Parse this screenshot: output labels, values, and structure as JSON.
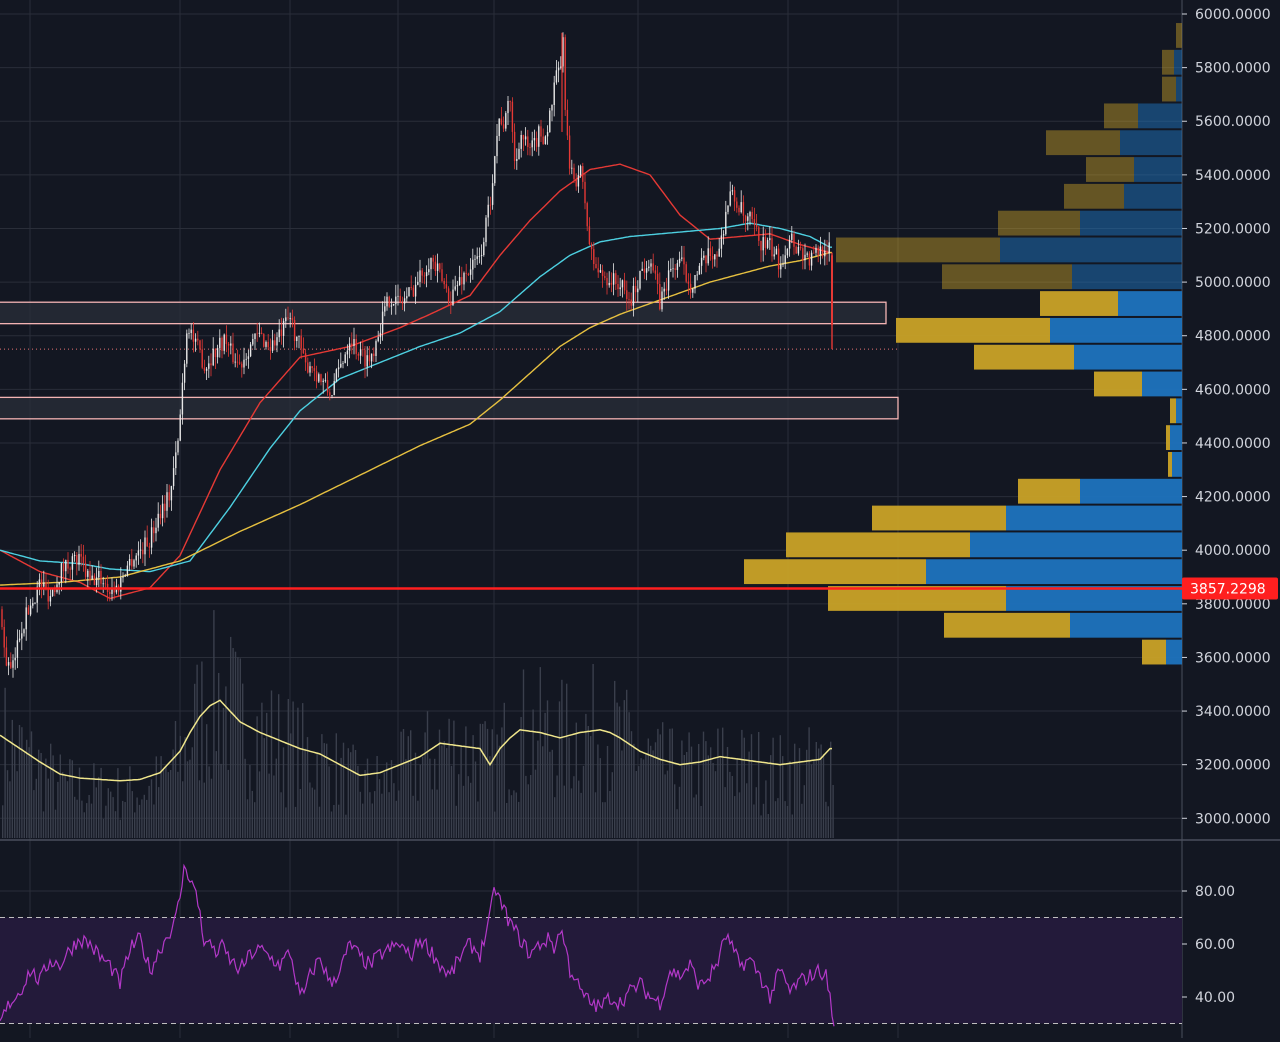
{
  "colors": {
    "background": "#131722",
    "grid": "#2a2e39",
    "axis_text": "#d1d4dc",
    "candle_up": "#e8e8e8",
    "candle_down": "#e53935",
    "ma_red": "#e53935",
    "ma_cyan": "#4dd0e1",
    "ma_yellow": "#e6c040",
    "volume_bar": "#3a3f4c",
    "volume_ma": "#f0e68c",
    "vp_blue": "#1e73be",
    "vp_gold": "#c9a227",
    "zone_border": "#f4b4b4",
    "zone_fill": "#2a2f3a",
    "price_line": "#ff1f1f",
    "rsi_line": "#b338c8",
    "rsi_band": "#231a3a",
    "rsi_band_line": "#bfbfbf"
  },
  "chart_data": [
    {
      "type": "candlestick",
      "ylim": [
        2900,
        6000
      ],
      "y_ticks": [
        "6000.0000",
        "5800.0000",
        "5600.0000",
        "5400.0000",
        "5200.0000",
        "5000.0000",
        "4800.0000",
        "4600.0000",
        "4400.0000",
        "4200.0000",
        "4000.0000",
        "3800.0000",
        "3600.0000",
        "3400.0000",
        "3200.0000",
        "3000.0000"
      ],
      "y_tick_values": [
        6000,
        5800,
        5600,
        5400,
        5200,
        5000,
        4800,
        4600,
        4400,
        4200,
        4000,
        3800,
        3600,
        3400,
        3200,
        3000
      ],
      "current_price": 3857.2298,
      "current_price_label": "3857.2298",
      "dotted_level": 4750,
      "close_series": {
        "keys": [
          0,
          5,
          12,
          20,
          30,
          40,
          50,
          60,
          70,
          80,
          90,
          100,
          110,
          118,
          125,
          130,
          140,
          150,
          160,
          170,
          178,
          183,
          186,
          188,
          190,
          195,
          200,
          205,
          210,
          215,
          220,
          225,
          230,
          240,
          250,
          260,
          270,
          280,
          286,
          290,
          295,
          300,
          305,
          310,
          320,
          330,
          340,
          350,
          360,
          370,
          380,
          390,
          400,
          410,
          420,
          430,
          440,
          450,
          460,
          470,
          480,
          490,
          495,
          500,
          505,
          510,
          515,
          520,
          530,
          540,
          545,
          550,
          555,
          560,
          563,
          566,
          570,
          575,
          580,
          585,
          590,
          595,
          600,
          610,
          620,
          630,
          640,
          650,
          660,
          670,
          680,
          690,
          700,
          710,
          720,
          725,
          730,
          735,
          740,
          745,
          750,
          760,
          770,
          780,
          785,
          790,
          795,
          800,
          810,
          820,
          826,
          830,
          833
        ],
        "values": [
          3780,
          3600,
          3540,
          3700,
          3790,
          3880,
          3830,
          3920,
          3960,
          3960,
          3880,
          3900,
          3850,
          3860,
          3930,
          3960,
          4000,
          4040,
          4150,
          4210,
          4400,
          4650,
          4790,
          4850,
          4830,
          4760,
          4740,
          4680,
          4720,
          4740,
          4770,
          4790,
          4740,
          4690,
          4770,
          4800,
          4760,
          4800,
          4840,
          4870,
          4810,
          4760,
          4680,
          4700,
          4640,
          4580,
          4680,
          4800,
          4730,
          4710,
          4840,
          4950,
          4920,
          4960,
          5020,
          5090,
          5020,
          4940,
          5010,
          5050,
          5090,
          5300,
          5500,
          5620,
          5580,
          5700,
          5420,
          5560,
          5480,
          5560,
          5540,
          5620,
          5740,
          5800,
          5880,
          5600,
          5400,
          5380,
          5420,
          5300,
          5120,
          5060,
          5030,
          5010,
          4990,
          4920,
          5030,
          5100,
          4920,
          5040,
          5080,
          4990,
          5050,
          5100,
          5120,
          5250,
          5330,
          5300,
          5280,
          5220,
          5230,
          5150,
          5130,
          5070,
          5120,
          5180,
          5140,
          5120,
          5080,
          5120,
          5140,
          5110,
          4760
        ]
      },
      "ma_series": [
        {
          "color_key": "ma_red",
          "keys": [
            0,
            40,
            80,
            110,
            150,
            180,
            220,
            260,
            300,
            350,
            400,
            430,
            470,
            500,
            530,
            560,
            590,
            620,
            650,
            680,
            710,
            740,
            770,
            800,
            830
          ],
          "values": [
            4000,
            3920,
            3880,
            3820,
            3860,
            3980,
            4300,
            4550,
            4720,
            4760,
            4830,
            4880,
            4950,
            5100,
            5230,
            5340,
            5420,
            5440,
            5400,
            5250,
            5160,
            5170,
            5180,
            5140,
            5110
          ]
        },
        {
          "color_key": "ma_cyan",
          "keys": [
            0,
            40,
            80,
            110,
            150,
            190,
            230,
            270,
            300,
            340,
            380,
            420,
            460,
            500,
            540,
            570,
            600,
            630,
            660,
            690,
            720,
            750,
            780,
            810,
            830
          ],
          "values": [
            4000,
            3960,
            3950,
            3930,
            3920,
            3960,
            4160,
            4380,
            4520,
            4640,
            4700,
            4760,
            4810,
            4890,
            5020,
            5100,
            5150,
            5170,
            5180,
            5190,
            5200,
            5220,
            5200,
            5170,
            5130
          ]
        },
        {
          "color_key": "ma_yellow",
          "keys": [
            0,
            60,
            120,
            180,
            240,
            300,
            360,
            420,
            470,
            500,
            530,
            560,
            590,
            620,
            650,
            680,
            710,
            740,
            770,
            800,
            830
          ],
          "values": [
            3870,
            3880,
            3900,
            3960,
            4070,
            4170,
            4280,
            4390,
            4470,
            4560,
            4660,
            4760,
            4830,
            4880,
            4920,
            4960,
            5000,
            5030,
            5060,
            5080,
            5110
          ]
        }
      ],
      "zones": [
        {
          "low": 4845,
          "high": 4925,
          "x_end": 886
        },
        {
          "low": 4490,
          "high": 4570,
          "x_end": 898
        }
      ]
    },
    {
      "type": "volume_profile",
      "rows": [
        {
          "low": 5870,
          "high": 5970,
          "blue": 0,
          "gold": 6
        },
        {
          "low": 5770,
          "high": 5870,
          "blue": 8,
          "gold": 12
        },
        {
          "low": 5670,
          "high": 5770,
          "blue": 6,
          "gold": 14
        },
        {
          "low": 5570,
          "high": 5670,
          "blue": 44,
          "gold": 34
        },
        {
          "low": 5470,
          "high": 5570,
          "blue": 62,
          "gold": 74
        },
        {
          "low": 5370,
          "high": 5470,
          "blue": 48,
          "gold": 48
        },
        {
          "low": 5270,
          "high": 5370,
          "blue": 58,
          "gold": 60
        },
        {
          "low": 5170,
          "high": 5270,
          "blue": 102,
          "gold": 82
        },
        {
          "low": 5070,
          "high": 5170,
          "blue": 182,
          "gold": 164
        },
        {
          "low": 4970,
          "high": 5070,
          "blue": 110,
          "gold": 130
        },
        {
          "low": 4870,
          "high": 4970,
          "blue": 64,
          "gold": 78
        },
        {
          "low": 4770,
          "high": 4870,
          "blue": 132,
          "gold": 154
        },
        {
          "low": 4670,
          "high": 4770,
          "blue": 108,
          "gold": 100
        },
        {
          "low": 4570,
          "high": 4670,
          "blue": 40,
          "gold": 48
        },
        {
          "low": 4470,
          "high": 4570,
          "blue": 6,
          "gold": 6
        },
        {
          "low": 4370,
          "high": 4470,
          "blue": 12,
          "gold": 4
        },
        {
          "low": 4270,
          "high": 4370,
          "blue": 10,
          "gold": 4
        },
        {
          "low": 4170,
          "high": 4270,
          "blue": 102,
          "gold": 62
        },
        {
          "low": 4070,
          "high": 4170,
          "blue": 176,
          "gold": 134
        },
        {
          "low": 3970,
          "high": 4070,
          "blue": 212,
          "gold": 184
        },
        {
          "low": 3870,
          "high": 3970,
          "blue": 256,
          "gold": 182
        },
        {
          "low": 3770,
          "high": 3870,
          "blue": 176,
          "gold": 178
        },
        {
          "low": 3670,
          "high": 3770,
          "blue": 112,
          "gold": 126
        },
        {
          "low": 3570,
          "high": 3670,
          "blue": 16,
          "gold": 24
        }
      ]
    },
    {
      "type": "line",
      "name": "RSI",
      "ylim": [
        25,
        95
      ],
      "y_ticks": [
        "80.00",
        "60.00",
        "40.00"
      ],
      "y_tick_values": [
        80,
        60,
        40
      ],
      "upper_band": 70,
      "lower_band": 30,
      "keys": [
        0,
        10,
        20,
        30,
        40,
        50,
        60,
        70,
        80,
        90,
        100,
        110,
        120,
        130,
        140,
        150,
        160,
        170,
        175,
        180,
        185,
        190,
        195,
        200,
        205,
        210,
        215,
        220,
        230,
        240,
        250,
        260,
        270,
        280,
        290,
        300,
        305,
        310,
        320,
        330,
        340,
        350,
        360,
        370,
        380,
        390,
        400,
        410,
        420,
        430,
        440,
        450,
        460,
        470,
        480,
        490,
        495,
        500,
        505,
        510,
        520,
        530,
        540,
        550,
        555,
        560,
        565,
        570,
        575,
        580,
        590,
        600,
        610,
        620,
        630,
        640,
        650,
        660,
        670,
        680,
        690,
        700,
        710,
        720,
        725,
        730,
        740,
        750,
        760,
        770,
        780,
        790,
        800,
        810,
        820,
        826,
        830,
        834
      ],
      "values": [
        30,
        38,
        42,
        50,
        46,
        54,
        52,
        58,
        62,
        60,
        55,
        52,
        45,
        58,
        62,
        50,
        58,
        65,
        68,
        78,
        90,
        85,
        80,
        72,
        58,
        62,
        55,
        60,
        54,
        50,
        56,
        58,
        55,
        52,
        57,
        40,
        42,
        48,
        55,
        45,
        50,
        60,
        55,
        52,
        56,
        58,
        60,
        55,
        62,
        58,
        52,
        48,
        55,
        60,
        56,
        70,
        82,
        76,
        72,
        68,
        62,
        56,
        60,
        62,
        58,
        66,
        60,
        50,
        48,
        42,
        38,
        36,
        40,
        38,
        42,
        45,
        40,
        38,
        50,
        48,
        52,
        44,
        48,
        55,
        64,
        60,
        52,
        54,
        48,
        40,
        50,
        42,
        46,
        48,
        50,
        48,
        40,
        28
      ]
    },
    {
      "type": "volume",
      "ma_keys": [
        0,
        20,
        40,
        60,
        80,
        100,
        120,
        140,
        160,
        180,
        190,
        200,
        210,
        220,
        230,
        240,
        260,
        280,
        300,
        320,
        340,
        360,
        380,
        400,
        420,
        440,
        460,
        480,
        490,
        500,
        510,
        520,
        540,
        560,
        580,
        600,
        610,
        620,
        640,
        660,
        680,
        700,
        720,
        740,
        760,
        780,
        800,
        820,
        830
      ],
      "ma_values": [
        3310,
        3260,
        3210,
        3165,
        3150,
        3145,
        3140,
        3145,
        3170,
        3250,
        3320,
        3380,
        3420,
        3440,
        3400,
        3360,
        3320,
        3290,
        3260,
        3240,
        3200,
        3160,
        3170,
        3200,
        3230,
        3280,
        3270,
        3260,
        3200,
        3260,
        3300,
        3330,
        3320,
        3300,
        3320,
        3330,
        3320,
        3300,
        3250,
        3220,
        3200,
        3210,
        3230,
        3220,
        3210,
        3200,
        3210,
        3220,
        3260
      ]
    }
  ]
}
